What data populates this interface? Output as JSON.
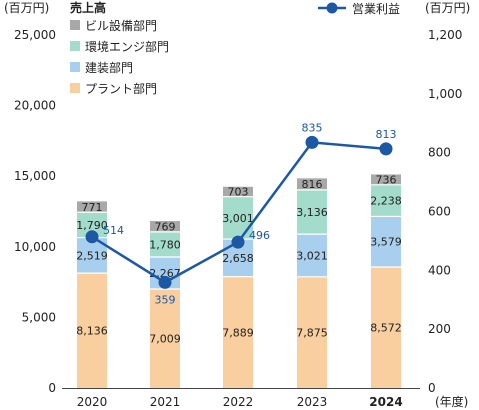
{
  "chart_data": {
    "type": "bar",
    "left_unit": "(百万円)",
    "right_unit": "(百万円)",
    "x_unit": "(年度)",
    "legend_title": "売上高",
    "categories": [
      "2020",
      "2021",
      "2022",
      "2023",
      "2024"
    ],
    "highlight_category": "2024",
    "ylim": [
      0,
      25000
    ],
    "y_ticks": [
      "25,000",
      "20,000",
      "15,000",
      "10,000",
      "5,000",
      "0"
    ],
    "y2lim": [
      0,
      1200
    ],
    "y2_ticks": [
      "1,200",
      "1,000",
      "800",
      "600",
      "400",
      "200",
      "0"
    ],
    "grid": false,
    "stacked": true,
    "series": [
      {
        "name": "プラント部門",
        "values": [
          8136,
          7009,
          7889,
          7875,
          8572
        ],
        "labels": [
          "8,136",
          "7,009",
          "7,889",
          "7,875",
          "8,572"
        ],
        "color": "#f9cf9f"
      },
      {
        "name": "建装部門",
        "values": [
          2519,
          2267,
          2658,
          3021,
          3579
        ],
        "labels": [
          "2,519",
          "2,267",
          "2,658",
          "3,021",
          "3,579"
        ],
        "color": "#a9cfee"
      },
      {
        "name": "環境エンジ部門",
        "values": [
          1790,
          1780,
          3001,
          3136,
          2238
        ],
        "labels": [
          "1,790",
          "1,780",
          "3,001",
          "3,136",
          "2,238"
        ],
        "color": "#a4dccb"
      },
      {
        "name": "ビル設備部門",
        "values": [
          771,
          769,
          703,
          816,
          736
        ],
        "labels": [
          "771",
          "769",
          "703",
          "816",
          "736"
        ],
        "color": "#a8a8a8"
      }
    ],
    "line_series": {
      "name": "営業利益",
      "axis": "right",
      "values": [
        514,
        359,
        496,
        835,
        813
      ],
      "labels": [
        "514",
        "359",
        "496",
        "835",
        "813"
      ],
      "color": "#1d58a4"
    },
    "legend_order": [
      "ビル設備部門",
      "環境エンジ部門",
      "建装部門",
      "プラント部門"
    ],
    "legend_placement": "top-left",
    "line_legend_placement": "top-right"
  }
}
